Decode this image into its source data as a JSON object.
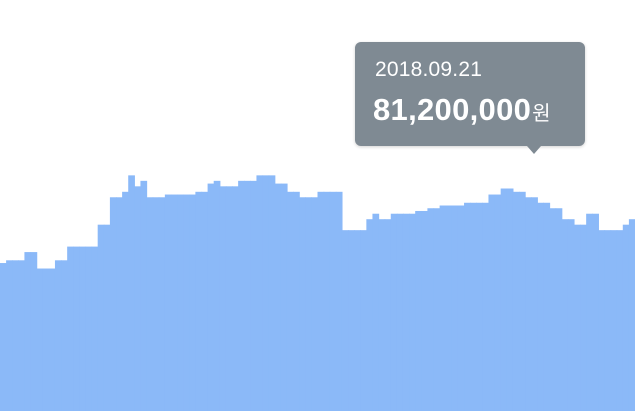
{
  "chart_data": {
    "type": "area",
    "step": true,
    "color": "#8bb9f8",
    "ylim": [
      0,
      150000000
    ],
    "values": [
      54000000,
      55000000,
      55000000,
      55000000,
      58000000,
      58000000,
      52000000,
      52000000,
      52000000,
      55000000,
      55000000,
      60000000,
      60000000,
      60000000,
      60000000,
      60000000,
      68000000,
      68000000,
      78000000,
      78000000,
      80000000,
      86000000,
      82000000,
      84000000,
      78000000,
      78000000,
      78000000,
      79000000,
      79000000,
      79000000,
      79000000,
      79000000,
      80000000,
      80000000,
      83000000,
      84000000,
      82000000,
      82000000,
      82000000,
      84000000,
      84000000,
      84000000,
      86000000,
      86000000,
      86000000,
      83000000,
      83000000,
      80000000,
      80000000,
      78000000,
      78000000,
      78000000,
      80000000,
      80000000,
      80000000,
      80000000,
      66000000,
      66000000,
      66000000,
      66000000,
      70000000,
      72000000,
      70000000,
      70000000,
      72000000,
      72000000,
      72000000,
      72000000,
      73000000,
      73000000,
      74000000,
      74000000,
      75000000,
      75000000,
      75000000,
      75000000,
      76000000,
      76000000,
      76000000,
      76000000,
      79000000,
      79000000,
      81200000,
      81200000,
      80000000,
      80000000,
      78000000,
      78000000,
      76000000,
      76000000,
      74000000,
      74000000,
      70000000,
      70000000,
      68000000,
      68000000,
      72000000,
      72000000,
      66000000,
      66000000,
      66000000,
      66000000,
      68000000,
      70000000
    ],
    "highlight_index": 82,
    "tooltip": {
      "date": "2018.09.21",
      "value": "81,200,000",
      "unit": "원"
    }
  }
}
